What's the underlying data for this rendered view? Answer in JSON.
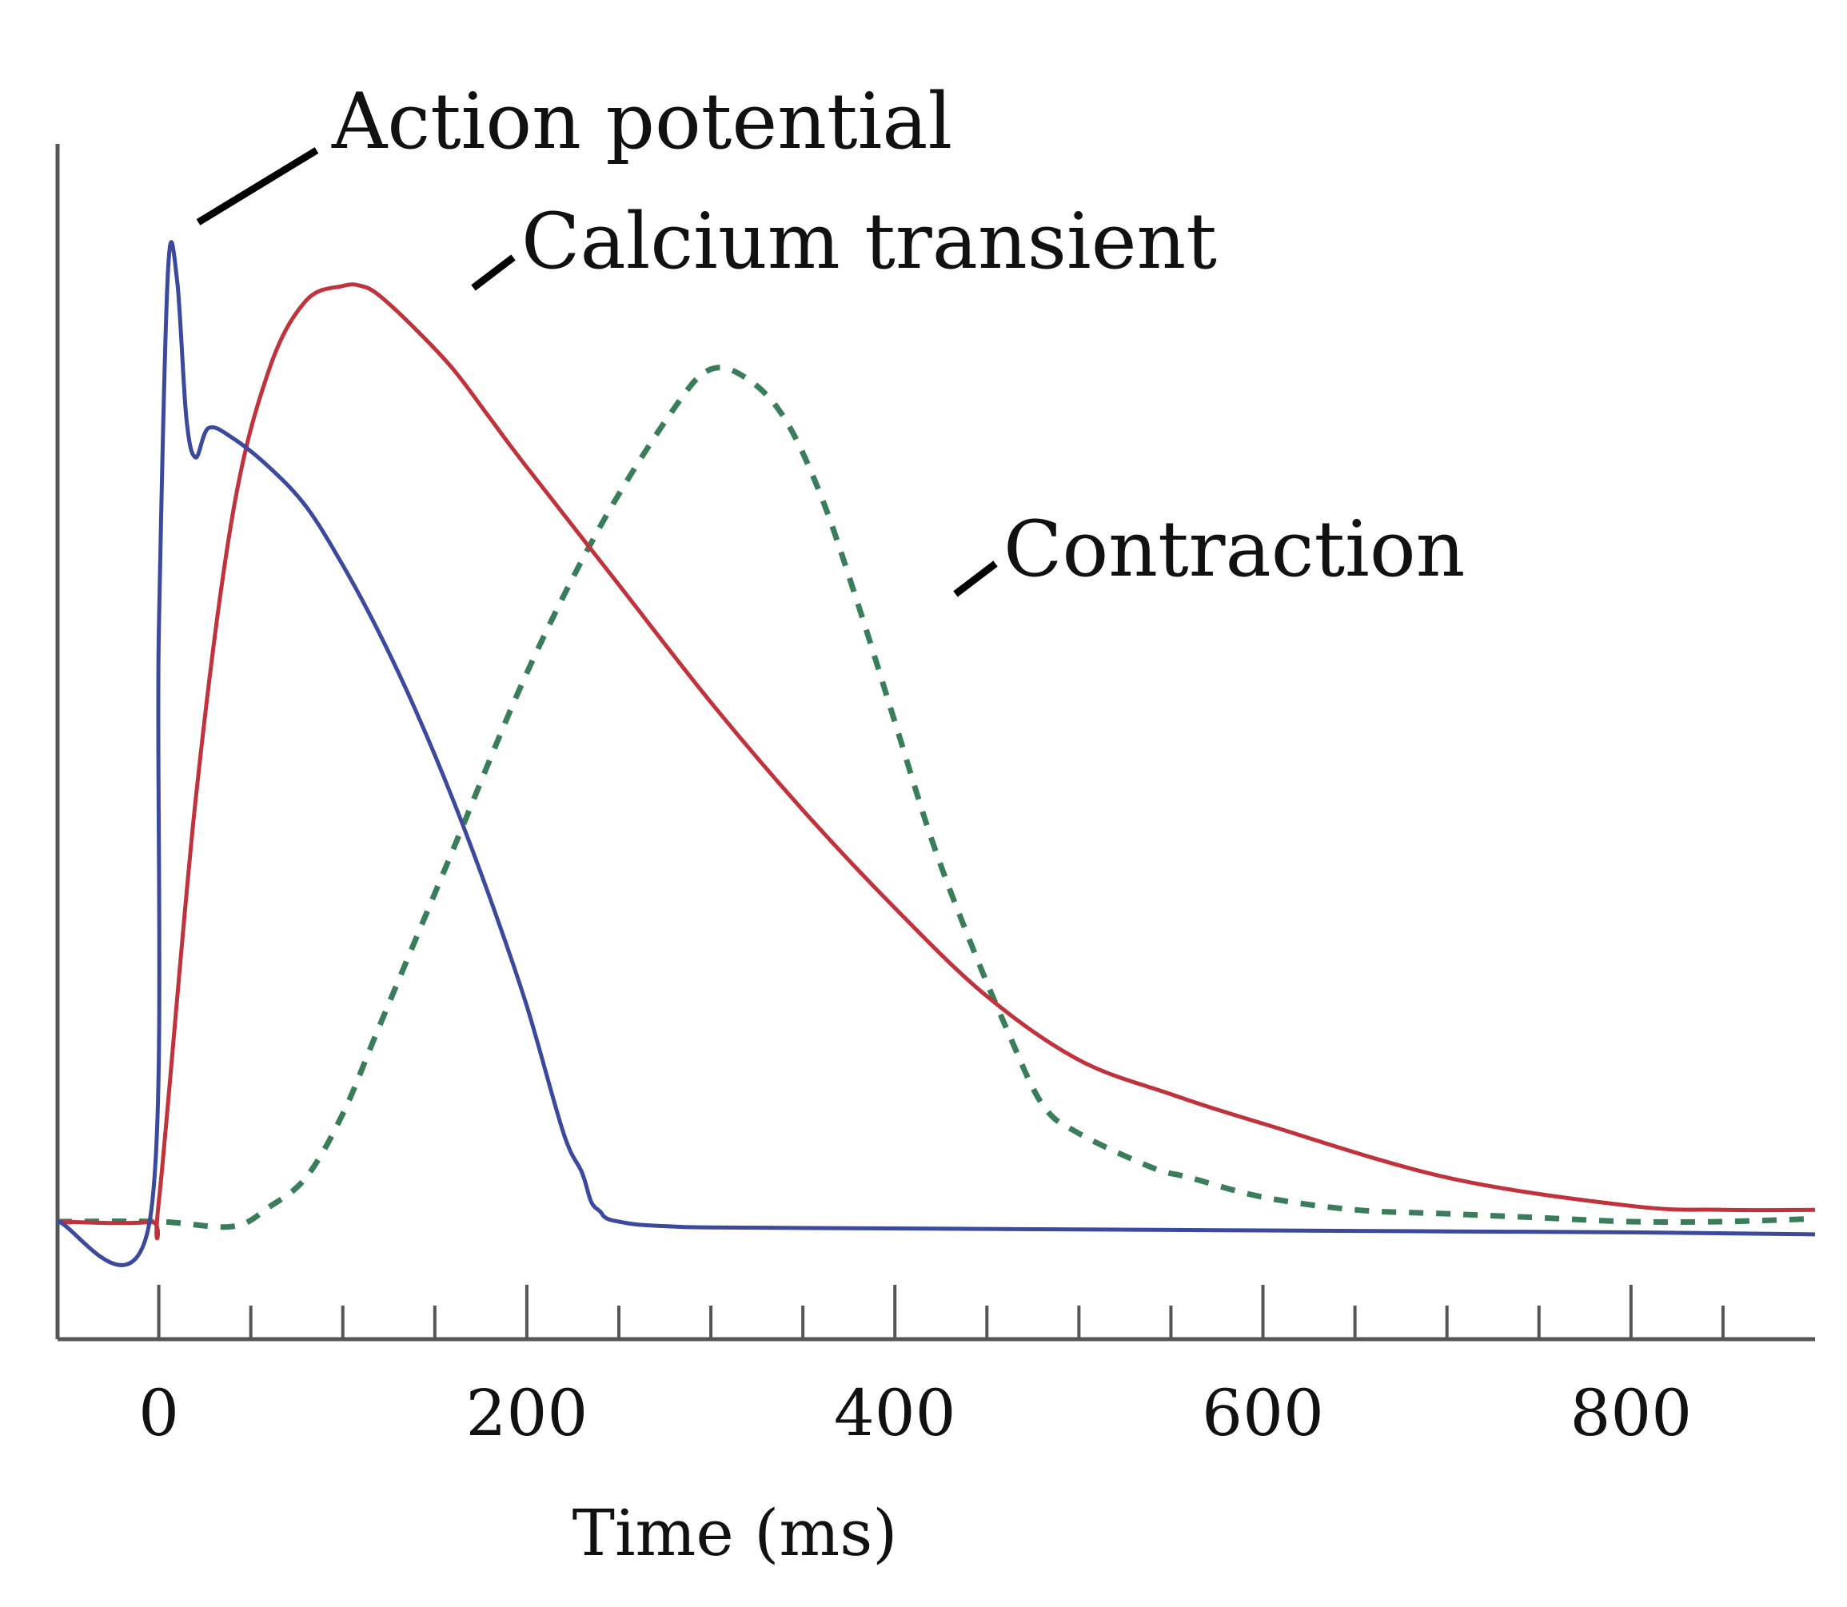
{
  "chart_data": {
    "type": "line",
    "title": "",
    "xlabel": "Time (ms)",
    "ylabel": "",
    "xlim": [
      -55,
      900
    ],
    "ylim": [
      -0.12,
      1.1
    ],
    "x_ticks": [
      0,
      200,
      400,
      600,
      800
    ],
    "grid": false,
    "series": [
      {
        "name": "Action potential",
        "color": "#3b4a9c",
        "dash": "solid",
        "x": [
          -55,
          -5,
          0,
          5,
          10,
          15,
          20,
          27,
          40,
          60,
          80,
          100,
          120,
          140,
          160,
          180,
          200,
          220,
          230,
          235,
          240,
          242,
          245,
          250,
          260,
          280,
          300,
          400,
          500,
          600,
          700,
          800,
          900
        ],
        "y": [
          0,
          0,
          0.6,
          0.97,
          0.96,
          0.82,
          0.78,
          0.81,
          0.8,
          0.77,
          0.73,
          0.67,
          0.6,
          0.52,
          0.43,
          0.33,
          0.22,
          0.09,
          0.05,
          0.02,
          0.01,
          0.005,
          0.002,
          0.0,
          -0.003,
          -0.005,
          -0.006,
          -0.007,
          -0.008,
          -0.009,
          -0.01,
          -0.011,
          -0.013
        ]
      },
      {
        "name": "Calcium transient",
        "color": "#c0323c",
        "dash": "solid",
        "x": [
          -55,
          -5,
          0,
          20,
          40,
          60,
          80,
          100,
          110,
          120,
          140,
          160,
          180,
          200,
          250,
          300,
          350,
          400,
          450,
          500,
          550,
          600,
          700,
          800,
          850,
          900
        ],
        "y": [
          0,
          0,
          0.02,
          0.43,
          0.72,
          0.87,
          0.94,
          0.955,
          0.955,
          0.945,
          0.91,
          0.87,
          0.82,
          0.77,
          0.65,
          0.53,
          0.42,
          0.32,
          0.23,
          0.165,
          0.13,
          0.1,
          0.045,
          0.016,
          0.012,
          0.012
        ]
      },
      {
        "name": "Contraction",
        "color": "#3a7d5a",
        "dash": "dashed",
        "x": [
          -55,
          0,
          40,
          60,
          80,
          100,
          120,
          160,
          200,
          240,
          280,
          300,
          320,
          340,
          360,
          380,
          400,
          420,
          440,
          460,
          480,
          500,
          540,
          560,
          600,
          650,
          700,
          750,
          800,
          850,
          900
        ],
        "y": [
          0,
          0,
          -0.005,
          0.015,
          0.045,
          0.11,
          0.2,
          0.38,
          0.56,
          0.71,
          0.83,
          0.87,
          0.86,
          0.82,
          0.74,
          0.63,
          0.51,
          0.39,
          0.29,
          0.2,
          0.12,
          0.09,
          0.055,
          0.045,
          0.025,
          0.012,
          0.008,
          0.004,
          0.0,
          0.0,
          0.003
        ]
      }
    ],
    "annotations": [
      {
        "text": "Action potential",
        "color": "#000000"
      },
      {
        "text": "Calcium transient",
        "color": "#000000"
      },
      {
        "text": "Contraction",
        "color": "#000000"
      }
    ]
  }
}
